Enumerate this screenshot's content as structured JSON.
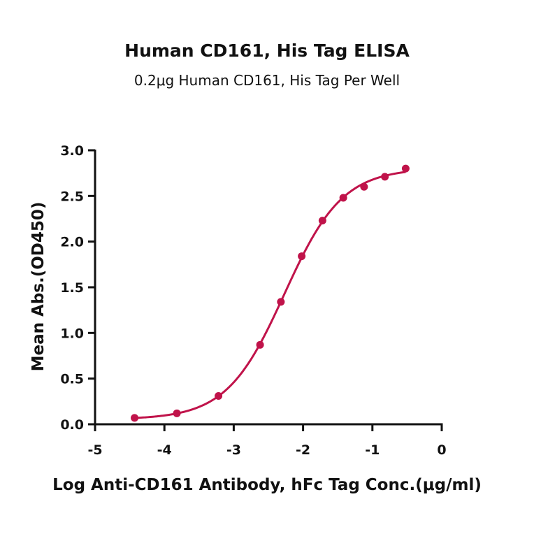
{
  "chart_data": {
    "type": "line",
    "title": "Human CD161, His Tag ELISA",
    "subtitle": "0.2μg Human CD161, His Tag Per Well",
    "xlabel": "Log Anti-CD161 Antibody, hFc Tag Conc.(μg/ml)",
    "ylabel": "Mean Abs.(OD450)",
    "xlim": [
      -5,
      0
    ],
    "ylim": [
      0.0,
      3.0
    ],
    "xticks": [
      -5,
      -4,
      -3,
      -2,
      -1,
      0
    ],
    "xtick_labels": [
      "-5",
      "-4",
      "-3",
      "-2",
      "-1",
      "0"
    ],
    "yticks": [
      0.0,
      0.5,
      1.0,
      1.5,
      2.0,
      2.5,
      3.0
    ],
    "ytick_labels": [
      "0.0",
      "0.5",
      "1.0",
      "1.5",
      "2.0",
      "2.5",
      "3.0"
    ],
    "grid": false,
    "color": "#c0134a",
    "series": [
      {
        "x": [
          -4.43,
          -3.82,
          -3.22,
          -2.62,
          -2.32,
          -2.02,
          -1.72,
          -1.42,
          -1.12,
          -0.82,
          -0.52
        ],
        "y": [
          0.07,
          0.12,
          0.31,
          0.87,
          1.34,
          1.84,
          2.23,
          2.48,
          2.6,
          2.71,
          2.8
        ],
        "fit": "4PL"
      }
    ]
  }
}
